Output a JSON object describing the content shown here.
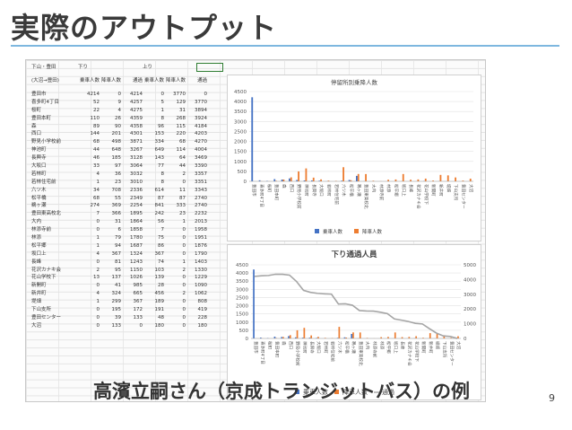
{
  "slide": {
    "title": "実際のアウトプット",
    "caption": "高濱立嗣さん（京成トランジットバス）の例",
    "page_number": "9"
  },
  "sheet": {
    "header_top": [
      "下山・豊田",
      "下り",
      "上り"
    ],
    "header_sub": [
      "(大沼→豊田)",
      "乗車人数",
      "降車人数",
      "通過",
      "乗車人数",
      "降車人数",
      "通過"
    ],
    "rows": [
      [
        "豊田市",
        "4214",
        "0",
        "4214",
        "0",
        "3770",
        "0"
      ],
      [
        "喜多町4丁目",
        "52",
        "9",
        "4257",
        "5",
        "129",
        "3770"
      ],
      [
        "桜町",
        "22",
        "4",
        "4275",
        "1",
        "31",
        "3894"
      ],
      [
        "豊田本町",
        "110",
        "26",
        "4359",
        "8",
        "268",
        "3924"
      ],
      [
        "森",
        "89",
        "90",
        "4358",
        "96",
        "115",
        "4184"
      ],
      [
        "西口",
        "144",
        "201",
        "4301",
        "153",
        "220",
        "4203"
      ],
      [
        "野見小学校前",
        "68",
        "498",
        "3871",
        "334",
        "68",
        "4270"
      ],
      [
        "神池町",
        "44",
        "648",
        "3267",
        "649",
        "114",
        "4004"
      ],
      [
        "長興寺",
        "46",
        "185",
        "3128",
        "143",
        "64",
        "3469"
      ],
      [
        "大坂口",
        "33",
        "97",
        "3064",
        "77",
        "44",
        "3390"
      ],
      [
        "若林町",
        "4",
        "36",
        "3032",
        "8",
        "2",
        "3357"
      ],
      [
        "若林住宅前",
        "1",
        "23",
        "3010",
        "8",
        "0",
        "3351"
      ],
      [
        "六ツ木",
        "34",
        "708",
        "2336",
        "614",
        "11",
        "3343"
      ],
      [
        "松平橋",
        "68",
        "55",
        "2349",
        "87",
        "87",
        "2740"
      ],
      [
        "鵜ヶ瀬",
        "274",
        "369",
        "2254",
        "841",
        "333",
        "2740"
      ],
      [
        "豊田東高校北",
        "7",
        "366",
        "1895",
        "242",
        "23",
        "2232"
      ],
      [
        "大内",
        "0",
        "31",
        "1864",
        "56",
        "1",
        "2013"
      ],
      [
        "林添寺前",
        "0",
        "6",
        "1858",
        "7",
        "0",
        "1958"
      ],
      [
        "林添",
        "1",
        "79",
        "1780",
        "75",
        "0",
        "1951"
      ],
      [
        "松平郷",
        "1",
        "94",
        "1687",
        "86",
        "0",
        "1876"
      ],
      [
        "坂口上",
        "4",
        "367",
        "1324",
        "367",
        "0",
        "1790"
      ],
      [
        "長峰",
        "0",
        "81",
        "1243",
        "74",
        "1",
        "1403"
      ],
      [
        "花沢カナキ会",
        "2",
        "95",
        "1150",
        "103",
        "2",
        "1330"
      ],
      [
        "花山学校下",
        "13",
        "137",
        "1026",
        "139",
        "0",
        "1229"
      ],
      [
        "新開町",
        "0",
        "41",
        "985",
        "28",
        "0",
        "1090"
      ],
      [
        "新井町",
        "4",
        "324",
        "665",
        "456",
        "2",
        "1062"
      ],
      [
        "堤畑",
        "1",
        "299",
        "367",
        "189",
        "0",
        "808"
      ],
      [
        "下山支所",
        "0",
        "195",
        "172",
        "191",
        "0",
        "419"
      ],
      [
        "豊田センター",
        "0",
        "39",
        "133",
        "48",
        "0",
        "228"
      ],
      [
        "大沼",
        "0",
        "133",
        "0",
        "180",
        "0",
        "180"
      ]
    ]
  },
  "chart_data": [
    {
      "type": "bar",
      "title": "停留所別乗降人数",
      "ylim": [
        0,
        4500
      ],
      "yticks": [
        "0",
        "500",
        "1000",
        "1500",
        "2000",
        "2500",
        "3000",
        "3500",
        "4000",
        "4500"
      ],
      "legend": "bottom",
      "series": [
        {
          "name": "乗車人数",
          "color": "#4472c4",
          "values": [
            4214,
            52,
            22,
            110,
            89,
            144,
            68,
            44,
            46,
            33,
            4,
            1,
            34,
            68,
            274,
            7,
            0,
            0,
            1,
            1,
            4,
            0,
            2,
            13,
            0,
            4,
            1,
            0,
            0,
            0
          ]
        },
        {
          "name": "降車人数",
          "color": "#ed7d31",
          "values": [
            0,
            9,
            4,
            26,
            90,
            201,
            498,
            648,
            185,
            97,
            36,
            23,
            708,
            55,
            369,
            366,
            31,
            6,
            79,
            94,
            367,
            81,
            95,
            137,
            41,
            324,
            299,
            195,
            39,
            133
          ]
        }
      ]
    },
    {
      "type": "bar",
      "title": "下り通過人員",
      "ylim": [
        0,
        4500
      ],
      "y2lim": [
        0,
        5000
      ],
      "yticks": [
        "0",
        "500",
        "1000",
        "1500",
        "2000",
        "2500",
        "3000",
        "3500",
        "4000",
        "4500"
      ],
      "y2ticks": [
        "0",
        "1000",
        "2000",
        "3000",
        "4000",
        "5000"
      ],
      "legend": "bottom",
      "series": [
        {
          "name": "乗車人数",
          "color": "#4472c4",
          "values": [
            4214,
            52,
            22,
            110,
            89,
            144,
            68,
            44,
            46,
            33,
            4,
            1,
            34,
            68,
            274,
            7,
            0,
            0,
            1,
            1,
            4,
            0,
            2,
            13,
            0,
            4,
            1,
            0,
            0,
            0
          ]
        },
        {
          "name": "降車人数",
          "color": "#ed7d31",
          "values": [
            0,
            9,
            4,
            26,
            90,
            201,
            498,
            648,
            185,
            97,
            36,
            23,
            708,
            55,
            369,
            366,
            31,
            6,
            79,
            94,
            367,
            81,
            95,
            137,
            41,
            324,
            299,
            195,
            39,
            133
          ]
        },
        {
          "name": "通過",
          "color": "#a5a5a5",
          "axis": "secondary",
          "values": [
            4214,
            4257,
            4275,
            4359,
            4358,
            4301,
            3871,
            3267,
            3128,
            3064,
            3032,
            3010,
            2336,
            2349,
            2254,
            1895,
            1864,
            1858,
            1780,
            1687,
            1324,
            1243,
            1150,
            1026,
            985,
            665,
            367,
            172,
            133,
            0
          ]
        }
      ]
    }
  ]
}
